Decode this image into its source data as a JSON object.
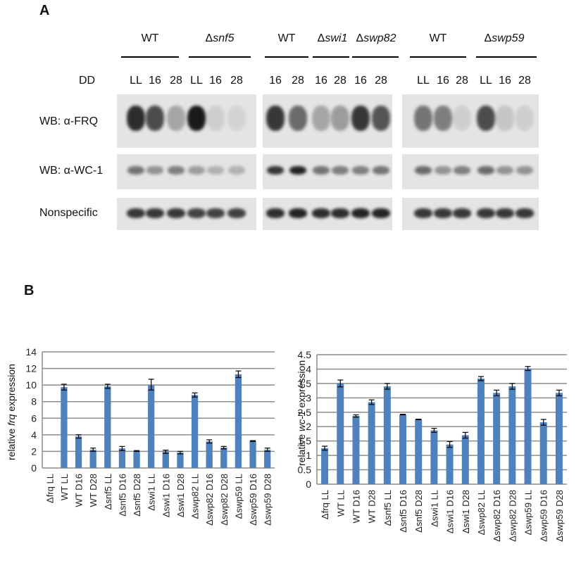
{
  "panels": {
    "a": "A",
    "b": "B"
  },
  "western": {
    "dd_label": "DD",
    "groups": [
      {
        "genotype_prefix": "",
        "genotype_name": "WT",
        "italic": false
      },
      {
        "genotype_prefix": "Δ",
        "genotype_name": "snf5",
        "italic": true
      },
      {
        "genotype_prefix": "",
        "genotype_name": "WT",
        "italic": false
      },
      {
        "genotype_prefix": "Δ",
        "genotype_name": "swi1",
        "italic": true
      },
      {
        "genotype_prefix": "Δ",
        "genotype_name": "swp82",
        "italic": true
      },
      {
        "genotype_prefix": "",
        "genotype_name": "WT",
        "italic": false
      },
      {
        "genotype_prefix": "Δ",
        "genotype_name": "swp59",
        "italic": true
      }
    ],
    "lanes": [
      "LL",
      "16",
      "28",
      "LL",
      "16",
      "28",
      "16",
      "28",
      "16",
      "28",
      "16",
      "28",
      "LL",
      "16",
      "28",
      "LL",
      "16",
      "28"
    ],
    "rows": [
      "WB: α-FRQ",
      "WB: α-WC-1",
      "Nonspecific"
    ],
    "colors": {
      "band": "#1a1a1a",
      "blot_bg": "#e4e4e4"
    }
  },
  "chart_data": [
    {
      "type": "bar",
      "ylabel_prefix": "relative ",
      "ylabel_italic": "frq",
      "ylabel_suffix": " expression",
      "ylim": [
        0,
        14
      ],
      "yticks": [
        0,
        2,
        4,
        6,
        8,
        10,
        12,
        14
      ],
      "grid": true,
      "color": "#4f81bd",
      "categories": [
        "Δfrq LL",
        "WT LL",
        "WT D16",
        "WT D28",
        "Δsnf5 LL",
        "Δsnf5 D16",
        "Δsnf5 D28",
        "Δswi1 LL",
        "Δswi1 D16",
        "Δswi1 D28",
        "Δswp82 LL",
        "Δswp82 D16",
        "Δswp82 D28",
        "Δswp59 LL",
        "Δswp59 D16",
        "Δswp59 D28"
      ],
      "values": [
        0,
        9.75,
        3.8,
        2.2,
        9.85,
        2.35,
        2.05,
        10.05,
        1.95,
        1.85,
        8.8,
        3.2,
        2.45,
        11.3,
        3.25,
        2.2
      ],
      "errors": [
        0,
        0.35,
        0.2,
        0.2,
        0.25,
        0.25,
        0.05,
        0.65,
        0.2,
        0.15,
        0.25,
        0.2,
        0.15,
        0.4,
        0.05,
        0.2
      ]
    },
    {
      "type": "bar",
      "ylabel_prefix": "relative ",
      "ylabel_italic": "wc-1",
      "ylabel_suffix": " expression",
      "ylim": [
        0,
        4.5
      ],
      "yticks": [
        0,
        0.5,
        1,
        1.5,
        2,
        2.5,
        3,
        3.5,
        4,
        4.5
      ],
      "grid": true,
      "color": "#4f81bd",
      "categories": [
        "Δfrq LL",
        "WT LL",
        "WT D16",
        "WT D28",
        "Δsnf5 LL",
        "Δsnf5 D16",
        "Δsnf5 D28",
        "Δswi1 LL",
        "Δswi1 D16",
        "Δswi1 D28",
        "Δswp82 LL",
        "Δswp82 D16",
        "Δswp82 D28",
        "Δswp59 LL",
        "Δswp59 D16",
        "Δswp59 D28"
      ],
      "values": [
        1.25,
        3.5,
        2.37,
        2.85,
        3.4,
        2.42,
        2.25,
        1.87,
        1.38,
        1.7,
        3.67,
        3.17,
        3.4,
        4.02,
        2.15,
        3.17
      ],
      "errors": [
        0.07,
        0.12,
        0.04,
        0.08,
        0.1,
        0.01,
        0.01,
        0.07,
        0.1,
        0.1,
        0.07,
        0.1,
        0.1,
        0.07,
        0.1,
        0.1
      ]
    }
  ]
}
